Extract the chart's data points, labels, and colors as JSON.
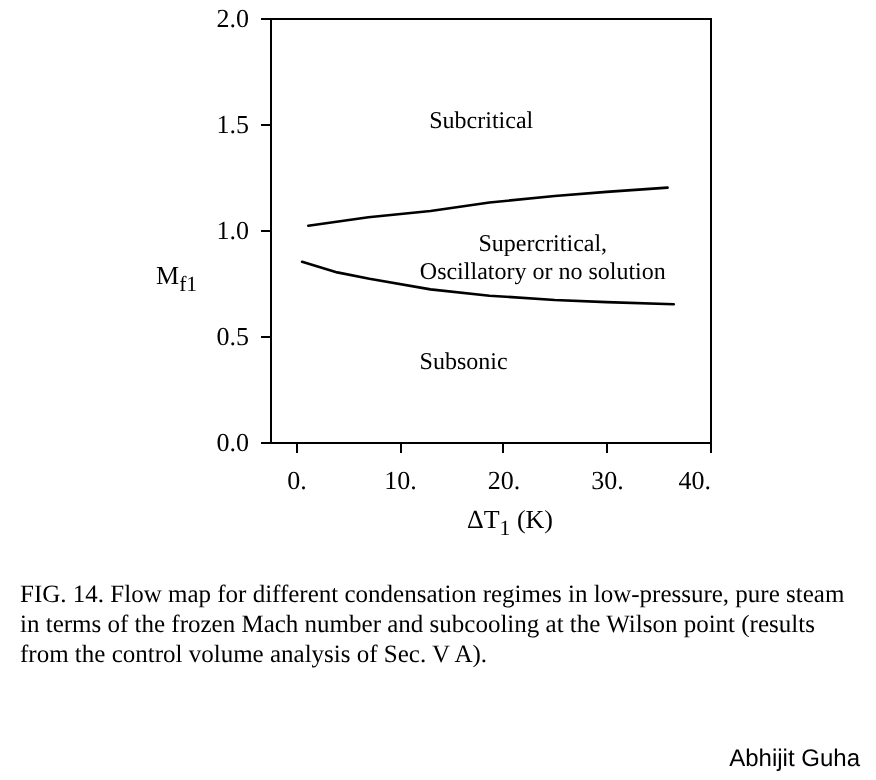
{
  "chart_data": {
    "type": "line",
    "xlabel": "ΔT$_{1}$ (K)",
    "ylabel": "M$_{f1}$",
    "xlim": [
      -2.5,
      40
    ],
    "ylim": [
      0,
      2
    ],
    "xticks": [
      {
        "value": 0,
        "label": "0."
      },
      {
        "value": 10,
        "label": "10."
      },
      {
        "value": 20,
        "label": "20."
      },
      {
        "value": 30,
        "label": "30."
      },
      {
        "value": 40,
        "label": "40."
      }
    ],
    "yticks": [
      {
        "value": 0,
        "label": "0.0"
      },
      {
        "value": 0.5,
        "label": "0.5"
      },
      {
        "value": 1,
        "label": "1.0"
      },
      {
        "value": 1.5,
        "label": "1.5"
      },
      {
        "value": 2,
        "label": "2.0"
      }
    ],
    "grid": false,
    "marker": "none",
    "line_style": "solid",
    "series": [
      {
        "color": "#000000",
        "x": [
          1.2,
          7,
          13,
          18.7,
          25,
          30,
          35.9
        ],
        "values": [
          1.02,
          1.06,
          1.09,
          1.13,
          1.16,
          1.18,
          1.2
        ]
      },
      {
        "color": "#000000",
        "x": [
          0.6,
          4,
          7.1,
          13,
          18.7,
          25,
          30,
          36.5
        ],
        "values": [
          0.85,
          0.8,
          0.77,
          0.72,
          0.69,
          0.67,
          0.66,
          0.65
        ]
      }
    ],
    "annotations": [
      "Subcritical",
      "Supercritical,\nOscillatory or no solution",
      "Subsonic",
      "FIG. 14. Flow map for different condensation regimes in low-pressure, pure steam in terms of the frozen Mach number and subcooling at the Wilson point (results from the control volume analysis of Sec. V A).",
      "Abhijit Guha"
    ]
  }
}
